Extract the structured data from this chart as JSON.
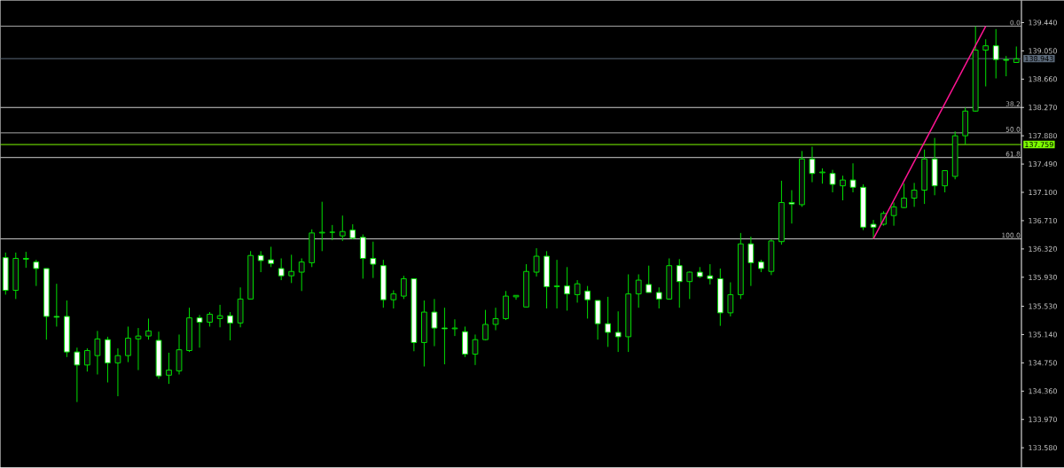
{
  "chart_data": {
    "type": "candlestick",
    "categories": [
      null,
      null,
      null,
      null,
      null,
      null,
      null,
      null,
      null,
      null,
      null,
      null,
      null,
      null,
      null,
      null,
      null,
      null,
      null,
      null,
      null,
      null,
      null,
      null,
      null,
      null,
      null,
      null,
      null,
      null,
      null,
      null,
      null,
      null,
      null,
      null,
      null,
      null,
      null,
      null,
      null,
      null,
      null,
      null,
      null,
      null,
      null,
      null,
      null,
      null,
      null,
      null,
      null,
      null,
      null,
      null,
      null,
      null,
      null,
      null,
      null,
      null,
      null,
      null,
      null,
      null,
      null,
      null,
      null,
      null,
      null,
      null,
      null,
      null,
      null,
      null,
      null,
      null,
      null,
      null,
      null,
      null,
      null,
      null,
      null,
      null,
      null,
      null,
      null,
      null,
      null,
      null,
      null,
      null,
      null,
      null,
      null,
      null,
      null,
      null
    ],
    "color": "#00e000",
    "ohlc": [
      [
        136.2,
        136.27,
        135.69,
        135.75
      ],
      [
        135.75,
        136.27,
        135.63,
        136.19
      ],
      [
        136.19,
        136.28,
        136.06,
        136.18
      ],
      [
        136.14,
        136.17,
        135.81,
        136.05
      ],
      [
        136.05,
        136.05,
        135.07,
        135.39
      ],
      [
        135.39,
        135.84,
        135.25,
        135.38
      ],
      [
        135.39,
        135.61,
        134.83,
        134.9
      ],
      [
        134.9,
        134.96,
        134.21,
        134.72
      ],
      [
        134.72,
        134.95,
        134.63,
        134.92
      ],
      [
        134.85,
        135.19,
        134.59,
        135.08
      ],
      [
        135.07,
        135.11,
        134.48,
        134.75
      ],
      [
        134.75,
        134.95,
        134.29,
        134.85
      ],
      [
        134.85,
        135.25,
        134.76,
        135.09
      ],
      [
        135.08,
        135.23,
        134.65,
        135.12
      ],
      [
        135.12,
        135.36,
        135.07,
        135.19
      ],
      [
        135.06,
        135.18,
        134.53,
        134.57
      ],
      [
        134.58,
        134.89,
        134.46,
        134.65
      ],
      [
        134.64,
        135.14,
        134.59,
        134.93
      ],
      [
        134.92,
        135.51,
        134.9,
        135.37
      ],
      [
        135.37,
        135.41,
        134.96,
        135.31
      ],
      [
        135.31,
        135.45,
        135.25,
        135.42
      ],
      [
        135.36,
        135.55,
        135.24,
        135.4
      ],
      [
        135.4,
        135.45,
        135.06,
        135.3
      ],
      [
        135.3,
        135.79,
        135.24,
        135.63
      ],
      [
        135.63,
        136.29,
        135.63,
        136.23
      ],
      [
        136.23,
        136.29,
        136.0,
        136.16
      ],
      [
        136.17,
        136.35,
        136.07,
        136.12
      ],
      [
        136.05,
        136.19,
        135.89,
        135.95
      ],
      [
        135.95,
        136.24,
        135.85,
        136.01
      ],
      [
        136.0,
        136.19,
        135.74,
        136.14
      ],
      [
        136.13,
        136.59,
        136.07,
        136.54
      ],
      [
        136.54,
        136.97,
        136.29,
        136.55
      ],
      [
        136.55,
        136.65,
        136.44,
        136.55
      ],
      [
        136.5,
        136.78,
        136.43,
        136.56
      ],
      [
        136.58,
        136.66,
        136.45,
        136.47
      ],
      [
        136.48,
        136.52,
        135.91,
        136.19
      ],
      [
        136.19,
        136.42,
        135.92,
        136.11
      ],
      [
        136.09,
        136.17,
        135.51,
        135.62
      ],
      [
        135.62,
        135.75,
        135.5,
        135.7
      ],
      [
        135.67,
        135.95,
        135.63,
        135.91
      ],
      [
        135.91,
        135.91,
        134.91,
        135.03
      ],
      [
        135.03,
        135.61,
        134.7,
        135.45
      ],
      [
        135.45,
        135.63,
        134.98,
        135.23
      ],
      [
        135.23,
        135.51,
        134.73,
        135.22
      ],
      [
        135.22,
        135.35,
        135.12,
        135.23
      ],
      [
        135.18,
        135.25,
        134.83,
        134.87
      ],
      [
        134.87,
        135.14,
        134.72,
        135.07
      ],
      [
        135.07,
        135.48,
        135.06,
        135.28
      ],
      [
        135.28,
        135.51,
        135.2,
        135.36
      ],
      [
        135.36,
        135.74,
        135.34,
        135.67
      ],
      [
        135.66,
        135.68,
        135.62,
        135.68
      ],
      [
        135.52,
        136.11,
        135.52,
        136.01
      ],
      [
        136.0,
        136.33,
        135.94,
        136.22
      ],
      [
        136.22,
        136.29,
        135.5,
        135.8
      ],
      [
        135.8,
        136.17,
        135.5,
        135.81
      ],
      [
        135.81,
        136.07,
        135.47,
        135.7
      ],
      [
        135.69,
        135.89,
        135.58,
        135.84
      ],
      [
        135.74,
        135.81,
        135.36,
        135.62
      ],
      [
        135.61,
        135.61,
        135.07,
        135.29
      ],
      [
        135.29,
        135.66,
        134.97,
        135.17
      ],
      [
        135.17,
        135.46,
        134.9,
        135.11
      ],
      [
        135.11,
        135.97,
        134.9,
        135.7
      ],
      [
        135.7,
        135.97,
        135.51,
        135.89
      ],
      [
        135.83,
        136.09,
        135.72,
        135.72
      ],
      [
        135.72,
        135.79,
        135.5,
        135.63
      ],
      [
        135.63,
        136.19,
        135.62,
        136.09
      ],
      [
        136.09,
        136.18,
        135.51,
        135.87
      ],
      [
        135.87,
        136.01,
        135.63,
        136.0
      ],
      [
        136.0,
        136.07,
        135.92,
        135.94
      ],
      [
        135.95,
        136.11,
        135.83,
        135.91
      ],
      [
        135.91,
        136.05,
        135.26,
        135.44
      ],
      [
        135.44,
        135.86,
        135.39,
        135.69
      ],
      [
        135.69,
        136.54,
        135.63,
        136.39
      ],
      [
        136.39,
        136.49,
        135.81,
        136.13
      ],
      [
        136.14,
        136.17,
        136.0,
        136.05
      ],
      [
        136.01,
        136.45,
        135.96,
        136.43
      ],
      [
        136.42,
        137.26,
        136.38,
        136.96
      ],
      [
        136.96,
        137.13,
        136.67,
        136.94
      ],
      [
        136.93,
        137.67,
        136.9,
        137.56
      ],
      [
        137.56,
        137.73,
        137.24,
        137.36
      ],
      [
        137.37,
        137.43,
        137.22,
        137.38
      ],
      [
        137.36,
        137.41,
        137.1,
        137.21
      ],
      [
        137.19,
        137.33,
        136.99,
        137.27
      ],
      [
        137.27,
        137.5,
        137.1,
        137.17
      ],
      [
        137.17,
        137.21,
        136.58,
        136.62
      ],
      [
        136.66,
        136.72,
        136.46,
        136.62
      ],
      [
        136.66,
        136.84,
        136.64,
        136.81
      ],
      [
        136.78,
        136.96,
        136.64,
        136.9
      ],
      [
        136.89,
        137.22,
        136.88,
        137.02
      ],
      [
        137.02,
        137.23,
        136.9,
        137.13
      ],
      [
        137.13,
        137.69,
        136.94,
        137.56
      ],
      [
        137.56,
        137.85,
        137.06,
        137.19
      ],
      [
        137.19,
        137.4,
        137.1,
        137.4
      ],
      [
        137.32,
        137.94,
        137.28,
        137.88
      ],
      [
        137.88,
        138.27,
        137.76,
        138.22
      ],
      [
        138.22,
        139.39,
        138.21,
        139.06
      ],
      [
        139.06,
        139.21,
        138.56,
        139.12
      ],
      [
        139.12,
        139.35,
        138.67,
        138.93
      ],
      [
        138.93,
        138.98,
        138.7,
        138.92
      ],
      [
        138.89,
        139.11,
        138.89,
        138.94
      ]
    ],
    "series": [
      {
        "type": "line",
        "color": "#ff1493",
        "values": [
          null,
          null,
          null,
          null,
          null,
          null,
          null,
          null,
          null,
          null,
          null,
          null,
          null,
          null,
          null,
          null,
          null,
          null,
          null,
          null,
          null,
          null,
          null,
          null,
          null,
          null,
          null,
          null,
          null,
          null,
          null,
          null,
          null,
          null,
          null,
          null,
          null,
          null,
          null,
          null,
          null,
          null,
          null,
          null,
          null,
          null,
          null,
          null,
          null,
          null,
          null,
          null,
          null,
          null,
          null,
          null,
          null,
          null,
          null,
          null,
          null,
          null,
          null,
          null,
          null,
          null,
          null,
          null,
          null,
          null,
          null,
          null,
          null,
          null,
          null,
          null,
          null,
          null,
          null,
          null,
          null,
          null,
          null,
          null,
          null,
          136.46,
          null,
          null,
          null,
          null,
          null,
          null,
          null,
          null,
          null,
          null,
          139.39,
          null,
          null,
          null
        ]
      }
    ],
    "ylim": [
      133.31,
      139.745
    ],
    "yticks": [
      {
        "value": 139.44,
        "label": "139.440"
      },
      {
        "value": 139.05,
        "label": "139.050"
      },
      {
        "value": 138.66,
        "label": "138.660"
      },
      {
        "value": 138.27,
        "label": "138.270"
      },
      {
        "value": 137.88,
        "label": "137.880"
      },
      {
        "value": 137.49,
        "label": "137.490"
      },
      {
        "value": 137.1,
        "label": "137.100"
      },
      {
        "value": 136.71,
        "label": "136.710"
      },
      {
        "value": 136.32,
        "label": "136.320"
      },
      {
        "value": 135.93,
        "label": "135.930"
      },
      {
        "value": 135.53,
        "label": "135.530"
      },
      {
        "value": 135.14,
        "label": "135.140"
      },
      {
        "value": 134.75,
        "label": "134.750"
      },
      {
        "value": 134.36,
        "label": "134.360"
      },
      {
        "value": 133.97,
        "label": "133.970"
      },
      {
        "value": 133.58,
        "label": "133.580"
      }
    ],
    "ref_lines": [
      {
        "axis": "y",
        "value": 139.39,
        "color": "#a8a8a8"
      },
      {
        "axis": "y",
        "value": 138.27,
        "color": "#d0d0d0"
      },
      {
        "axis": "y",
        "value": 137.92,
        "color": "#a8a8a8"
      },
      {
        "axis": "y",
        "value": 137.58,
        "color": "#d0d0d0"
      },
      {
        "axis": "y",
        "value": 136.46,
        "color": "#d0d0d0"
      },
      {
        "axis": "y",
        "value": 138.943,
        "label": "138.943",
        "color": "#5a6878"
      },
      {
        "axis": "y",
        "value": 137.759,
        "label": "137.759",
        "color": "#7cfc00"
      }
    ],
    "annotations": [
      {
        "text": "0.0",
        "y": 139.39
      },
      {
        "text": "38.2",
        "y": 138.27
      },
      {
        "text": "50.0",
        "y": 137.92
      },
      {
        "text": "61.8",
        "y": 137.58
      },
      {
        "text": "100.0",
        "y": 136.46
      }
    ]
  }
}
